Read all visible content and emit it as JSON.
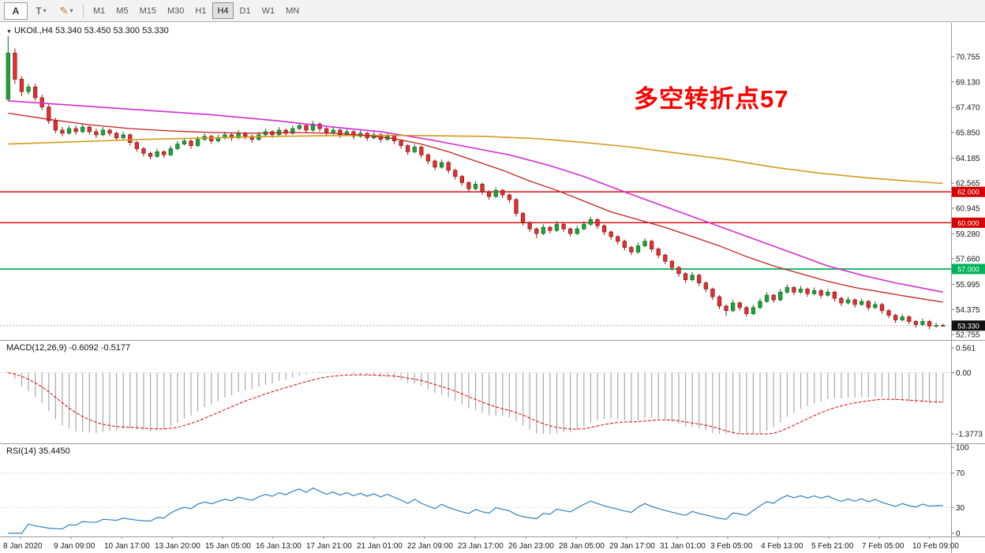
{
  "toolbar": {
    "buttons": [
      {
        "id": "arrow-tool",
        "label": "A"
      },
      {
        "id": "text-tool",
        "label": "T",
        "caret": "▾"
      },
      {
        "id": "draw-tool",
        "label": "✎",
        "caret": "▾"
      }
    ],
    "timeframes": [
      "M1",
      "M5",
      "M15",
      "M30",
      "H1",
      "H4",
      "D1",
      "W1",
      "MN"
    ],
    "active_timeframe": "H4"
  },
  "chart": {
    "info_symbol": "UKOil.,H4",
    "info_ohlc": "53.340 53.450 53.300 53.330",
    "annotation": {
      "text": "多空转折点57",
      "color": "#fe0000"
    },
    "price_axis_labels": [
      "70.755",
      "69.130",
      "67.470",
      "65.850",
      "64.185",
      "62.565",
      "60.945",
      "59.280",
      "57.660",
      "55.995",
      "54.375",
      "52.755"
    ],
    "hlines": [
      {
        "label": "62.000",
        "price": 62.0,
        "color": "#d40000",
        "width": 1.3
      },
      {
        "label": "60.000",
        "price": 60.0,
        "color": "#d40000",
        "width": 1.3
      },
      {
        "label": "57.000",
        "price": 57.0,
        "color": "#00b25a",
        "width": 1.8
      }
    ],
    "current_price": {
      "label": "53.330",
      "value": 53.33,
      "color": "#111111"
    }
  },
  "macd_panel": {
    "label": "MACD(12,26,9) -0.6092 -0.5177",
    "ylim": [
      -1.3773,
      0.561
    ],
    "axis_labels": [
      {
        "label": "0.561",
        "value": 0.561
      },
      {
        "label": "0.00",
        "value": 0
      },
      {
        "label": "-1.3773",
        "value": -1.3773
      }
    ]
  },
  "rsi_panel": {
    "label": "RSI(14) 35.4450",
    "levels": [
      70,
      30
    ],
    "axis_labels": [
      {
        "label": "100",
        "value": 100
      },
      {
        "label": "70",
        "value": 70
      },
      {
        "label": "30",
        "value": 30
      },
      {
        "label": "0",
        "value": 0
      }
    ]
  },
  "time_axis": [
    "8 Jan 2020",
    "9 Jan 09:00",
    "10 Jan 17:00",
    "13 Jan 20:00",
    "15 Jan 05:00",
    "16 Jan 13:00",
    "17 Jan 21:00",
    "21 Jan 01:00",
    "22 Jan 09:00",
    "23 Jan 17:00",
    "26 Jan 23:00",
    "28 Jan 05:00",
    "29 Jan 17:00",
    "31 Jan 01:00",
    "3 Feb 05:00",
    "4 Feb 13:00",
    "5 Feb 21:00",
    "7 Feb 05:00",
    "10 Feb 09:00"
  ],
  "chart_data": {
    "type": "candlestick",
    "symbol": "UKOil.",
    "timeframe": "H4",
    "ylim": [
      52.46,
      72.9
    ],
    "colors": {
      "up": "#1fa33a",
      "down": "#e03131",
      "up_border": "#0b6b23",
      "down_border": "#8f1515"
    },
    "ohlc": [
      [
        68.0,
        72.1,
        67.9,
        71.0
      ],
      [
        71.0,
        71.3,
        69.0,
        69.3
      ],
      [
        69.3,
        69.5,
        68.2,
        68.5
      ],
      [
        68.5,
        69.0,
        68.3,
        68.8
      ],
      [
        68.8,
        69.0,
        67.9,
        68.1
      ],
      [
        68.1,
        68.3,
        67.3,
        67.5
      ],
      [
        67.5,
        67.7,
        66.4,
        66.6
      ],
      [
        66.6,
        66.8,
        65.8,
        66.0
      ],
      [
        66.0,
        66.2,
        65.6,
        65.8
      ],
      [
        65.8,
        66.3,
        65.7,
        66.1
      ],
      [
        66.1,
        66.3,
        65.7,
        65.9
      ],
      [
        65.9,
        66.4,
        65.8,
        66.2
      ],
      [
        66.2,
        66.3,
        65.7,
        65.9
      ],
      [
        65.9,
        66.1,
        65.5,
        65.7
      ],
      [
        65.7,
        66.2,
        65.6,
        66.0
      ],
      [
        66.0,
        66.1,
        65.6,
        65.8
      ],
      [
        65.8,
        65.9,
        65.3,
        65.5
      ],
      [
        65.5,
        65.9,
        65.4,
        65.7
      ],
      [
        65.7,
        65.8,
        65.0,
        65.2
      ],
      [
        65.2,
        65.3,
        64.6,
        64.8
      ],
      [
        64.8,
        64.9,
        64.3,
        64.5
      ],
      [
        64.5,
        64.6,
        64.1,
        64.3
      ],
      [
        64.3,
        64.8,
        64.2,
        64.6
      ],
      [
        64.6,
        64.7,
        64.2,
        64.4
      ],
      [
        64.4,
        65.0,
        64.3,
        64.8
      ],
      [
        64.8,
        65.3,
        64.7,
        65.1
      ],
      [
        65.1,
        65.5,
        65.0,
        65.3
      ],
      [
        65.3,
        65.4,
        64.8,
        65.0
      ],
      [
        65.0,
        65.6,
        64.9,
        65.4
      ],
      [
        65.4,
        65.8,
        65.3,
        65.6
      ],
      [
        65.6,
        65.7,
        65.1,
        65.3
      ],
      [
        65.3,
        65.7,
        65.2,
        65.5
      ],
      [
        65.5,
        65.9,
        65.4,
        65.7
      ],
      [
        65.7,
        65.8,
        65.3,
        65.5
      ],
      [
        65.5,
        66.0,
        65.4,
        65.8
      ],
      [
        65.8,
        65.9,
        65.4,
        65.6
      ],
      [
        65.6,
        65.7,
        65.2,
        65.4
      ],
      [
        65.4,
        65.9,
        65.3,
        65.7
      ],
      [
        65.7,
        66.1,
        65.6,
        65.9
      ],
      [
        65.9,
        66.0,
        65.5,
        65.7
      ],
      [
        65.7,
        66.2,
        65.6,
        66.0
      ],
      [
        66.0,
        66.1,
        65.6,
        65.8
      ],
      [
        65.8,
        66.3,
        65.7,
        66.1
      ],
      [
        66.1,
        66.5,
        66.0,
        66.3
      ],
      [
        66.3,
        66.4,
        65.8,
        66.0
      ],
      [
        66.0,
        66.6,
        65.9,
        66.4
      ],
      [
        66.4,
        66.5,
        65.9,
        66.1
      ],
      [
        66.1,
        66.2,
        65.6,
        65.8
      ],
      [
        65.8,
        66.2,
        65.7,
        66.0
      ],
      [
        66.0,
        66.1,
        65.5,
        65.7
      ],
      [
        65.7,
        66.1,
        65.6,
        65.9
      ],
      [
        65.9,
        66.0,
        65.4,
        65.6
      ],
      [
        65.6,
        66.0,
        65.5,
        65.8
      ],
      [
        65.8,
        65.9,
        65.3,
        65.5
      ],
      [
        65.5,
        65.9,
        65.4,
        65.7
      ],
      [
        65.7,
        65.8,
        65.2,
        65.4
      ],
      [
        65.4,
        65.8,
        65.3,
        65.6
      ],
      [
        65.6,
        65.7,
        65.1,
        65.3
      ],
      [
        65.3,
        65.4,
        64.8,
        65.0
      ],
      [
        65.0,
        65.1,
        64.4,
        64.6
      ],
      [
        64.6,
        65.1,
        64.5,
        64.9
      ],
      [
        64.9,
        65.0,
        64.2,
        64.4
      ],
      [
        64.4,
        64.5,
        63.8,
        64.0
      ],
      [
        64.0,
        64.1,
        63.4,
        63.6
      ],
      [
        63.6,
        64.1,
        63.5,
        63.9
      ],
      [
        63.9,
        64.0,
        63.2,
        63.4
      ],
      [
        63.4,
        63.5,
        62.8,
        63.0
      ],
      [
        63.0,
        63.1,
        62.4,
        62.6
      ],
      [
        62.6,
        62.7,
        62.0,
        62.2
      ],
      [
        62.2,
        62.7,
        62.1,
        62.5
      ],
      [
        62.5,
        62.6,
        61.8,
        62.0
      ],
      [
        62.0,
        62.1,
        61.5,
        61.7
      ],
      [
        61.7,
        62.3,
        61.6,
        62.1
      ],
      [
        62.1,
        62.2,
        61.6,
        61.8
      ],
      [
        61.8,
        61.9,
        61.3,
        61.5
      ],
      [
        61.5,
        61.6,
        60.4,
        60.6
      ],
      [
        60.6,
        60.7,
        59.8,
        60.0
      ],
      [
        60.0,
        60.1,
        59.4,
        59.6
      ],
      [
        59.6,
        59.7,
        59.0,
        59.3
      ],
      [
        59.3,
        59.9,
        59.2,
        59.7
      ],
      [
        59.7,
        59.8,
        59.3,
        59.5
      ],
      [
        59.5,
        60.1,
        59.4,
        59.9
      ],
      [
        59.9,
        60.0,
        59.4,
        59.6
      ],
      [
        59.6,
        59.7,
        59.1,
        59.3
      ],
      [
        59.3,
        59.8,
        59.2,
        59.6
      ],
      [
        59.6,
        60.1,
        59.5,
        59.9
      ],
      [
        59.9,
        60.4,
        59.8,
        60.2
      ],
      [
        60.2,
        60.3,
        59.6,
        59.8
      ],
      [
        59.8,
        59.9,
        59.2,
        59.4
      ],
      [
        59.4,
        59.5,
        58.9,
        59.1
      ],
      [
        59.1,
        59.2,
        58.6,
        58.8
      ],
      [
        58.8,
        58.9,
        58.2,
        58.4
      ],
      [
        58.4,
        58.5,
        57.9,
        58.1
      ],
      [
        58.1,
        58.7,
        58.0,
        58.5
      ],
      [
        58.5,
        59.0,
        58.4,
        58.8
      ],
      [
        58.8,
        58.9,
        58.1,
        58.3
      ],
      [
        58.3,
        58.4,
        57.7,
        57.9
      ],
      [
        57.9,
        58.0,
        57.3,
        57.5
      ],
      [
        57.5,
        57.6,
        56.9,
        57.1
      ],
      [
        57.1,
        57.2,
        56.5,
        56.7
      ],
      [
        56.7,
        56.8,
        56.1,
        56.3
      ],
      [
        56.3,
        56.8,
        56.2,
        56.6
      ],
      [
        56.6,
        56.7,
        55.9,
        56.1
      ],
      [
        56.1,
        56.2,
        55.5,
        55.7
      ],
      [
        55.7,
        55.8,
        55.0,
        55.2
      ],
      [
        55.2,
        55.3,
        54.4,
        54.6
      ],
      [
        54.6,
        54.7,
        53.95,
        54.3
      ],
      [
        54.3,
        55.0,
        54.2,
        54.8
      ],
      [
        54.8,
        54.9,
        54.3,
        54.5
      ],
      [
        54.5,
        54.6,
        53.9,
        54.1
      ],
      [
        54.1,
        54.7,
        54.0,
        54.5
      ],
      [
        54.5,
        55.1,
        54.4,
        54.9
      ],
      [
        54.9,
        55.5,
        54.8,
        55.3
      ],
      [
        55.3,
        55.4,
        54.8,
        55.0
      ],
      [
        55.0,
        55.7,
        54.9,
        55.5
      ],
      [
        55.5,
        56.0,
        55.4,
        55.8
      ],
      [
        55.8,
        55.9,
        55.3,
        55.5
      ],
      [
        55.5,
        55.9,
        55.4,
        55.7
      ],
      [
        55.7,
        55.8,
        55.2,
        55.4
      ],
      [
        55.4,
        55.8,
        55.3,
        55.6
      ],
      [
        55.6,
        55.7,
        55.1,
        55.3
      ],
      [
        55.3,
        55.7,
        55.2,
        55.5
      ],
      [
        55.5,
        55.6,
        54.9,
        55.1
      ],
      [
        55.1,
        55.2,
        54.6,
        54.8
      ],
      [
        54.8,
        55.2,
        54.7,
        55.0
      ],
      [
        55.0,
        55.1,
        54.5,
        54.7
      ],
      [
        54.7,
        55.1,
        54.6,
        54.9
      ],
      [
        54.9,
        55.0,
        54.3,
        54.5
      ],
      [
        54.5,
        54.9,
        54.4,
        54.7
      ],
      [
        54.7,
        54.8,
        54.1,
        54.3
      ],
      [
        54.3,
        54.4,
        53.8,
        54.0
      ],
      [
        54.0,
        54.1,
        53.5,
        53.7
      ],
      [
        53.7,
        54.1,
        53.6,
        53.9
      ],
      [
        53.9,
        54.0,
        53.4,
        53.6
      ],
      [
        53.6,
        53.7,
        53.2,
        53.4
      ],
      [
        53.4,
        53.8,
        53.3,
        53.6
      ],
      [
        53.6,
        53.7,
        53.1,
        53.3
      ],
      [
        53.3,
        53.5,
        53.2,
        53.34
      ],
      [
        53.34,
        53.45,
        53.3,
        53.33
      ]
    ],
    "ma_lines": [
      {
        "name": "ma-slow-magenta",
        "color": "#d52bd5",
        "width": 1.6,
        "points": [
          [
            0,
            67.9
          ],
          [
            10,
            67.6
          ],
          [
            20,
            67.3
          ],
          [
            30,
            67.0
          ],
          [
            40,
            66.6
          ],
          [
            48,
            66.2
          ],
          [
            55,
            65.9
          ],
          [
            62,
            65.4
          ],
          [
            68,
            64.9
          ],
          [
            74,
            64.4
          ],
          [
            80,
            63.7
          ],
          [
            85,
            63.0
          ],
          [
            91,
            62.0
          ],
          [
            96,
            61.2
          ],
          [
            101,
            60.4
          ],
          [
            106,
            59.6
          ],
          [
            111,
            58.8
          ],
          [
            116,
            58.0
          ],
          [
            121,
            57.2
          ],
          [
            126,
            56.6
          ],
          [
            131,
            56.1
          ],
          [
            138,
            55.5
          ]
        ]
      },
      {
        "name": "ma-slowest-orange",
        "color": "#d49a1e",
        "width": 1.6,
        "points": [
          [
            0,
            65.1
          ],
          [
            10,
            65.25
          ],
          [
            20,
            65.4
          ],
          [
            30,
            65.5
          ],
          [
            40,
            65.6
          ],
          [
            50,
            65.65
          ],
          [
            60,
            65.65
          ],
          [
            70,
            65.6
          ],
          [
            78,
            65.45
          ],
          [
            85,
            65.2
          ],
          [
            92,
            64.9
          ],
          [
            99,
            64.5
          ],
          [
            106,
            64.1
          ],
          [
            113,
            63.6
          ],
          [
            120,
            63.2
          ],
          [
            127,
            62.9
          ],
          [
            133,
            62.7
          ],
          [
            138,
            62.55
          ]
        ]
      },
      {
        "name": "ma-fast-red",
        "color": "#c22020",
        "width": 1.3,
        "points": [
          [
            0,
            67.1
          ],
          [
            6,
            66.7
          ],
          [
            12,
            66.35
          ],
          [
            18,
            66.1
          ],
          [
            24,
            65.95
          ],
          [
            30,
            65.85
          ],
          [
            36,
            65.8
          ],
          [
            42,
            65.85
          ],
          [
            48,
            65.8
          ],
          [
            53,
            65.65
          ],
          [
            57,
            65.45
          ],
          [
            61,
            65.1
          ],
          [
            65,
            64.6
          ],
          [
            69,
            64.0
          ],
          [
            73,
            63.4
          ],
          [
            77,
            62.7
          ],
          [
            81,
            62.1
          ],
          [
            85,
            61.4
          ],
          [
            89,
            60.7
          ],
          [
            93,
            60.2
          ],
          [
            97,
            59.7
          ],
          [
            101,
            59.1
          ],
          [
            105,
            58.5
          ],
          [
            109,
            57.8
          ],
          [
            113,
            57.2
          ],
          [
            117,
            56.7
          ],
          [
            121,
            56.2
          ],
          [
            125,
            55.8
          ],
          [
            129,
            55.5
          ],
          [
            133,
            55.2
          ],
          [
            138,
            54.85
          ]
        ]
      }
    ],
    "indicators": [
      {
        "name": "MACD",
        "params": [
          12,
          26,
          9
        ],
        "values_shown": [
          -0.6092,
          -0.5177
        ]
      },
      {
        "name": "RSI",
        "params": [
          14
        ],
        "value_shown": 35.445
      }
    ]
  }
}
